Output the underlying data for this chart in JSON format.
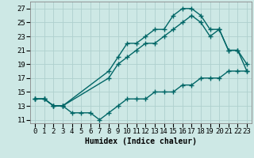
{
  "xlabel": "Humidex (Indice chaleur)",
  "bg_color": "#cde8e5",
  "grid_color": "#aed0ce",
  "line_color": "#006666",
  "xlim": [
    -0.5,
    23.5
  ],
  "ylim": [
    10.5,
    28.0
  ],
  "xticks": [
    0,
    1,
    2,
    3,
    4,
    5,
    6,
    7,
    8,
    9,
    10,
    11,
    12,
    13,
    14,
    15,
    16,
    17,
    18,
    19,
    20,
    21,
    22,
    23
  ],
  "yticks": [
    11,
    13,
    15,
    17,
    19,
    21,
    23,
    25,
    27
  ],
  "line1_x": [
    0,
    1,
    2,
    3,
    8,
    9,
    10,
    11,
    12,
    13,
    14,
    15,
    16,
    17,
    18,
    19,
    20,
    21,
    22,
    23
  ],
  "line1_y": [
    14,
    14,
    13,
    13,
    18,
    20,
    22,
    22,
    23,
    24,
    24,
    26,
    27,
    27,
    26,
    24,
    24,
    21,
    21,
    19
  ],
  "line2_x": [
    0,
    1,
    2,
    3,
    8,
    9,
    10,
    11,
    12,
    13,
    14,
    15,
    16,
    17,
    18,
    19,
    20,
    21,
    22,
    23
  ],
  "line2_y": [
    14,
    14,
    13,
    13,
    17,
    19,
    20,
    21,
    22,
    22,
    23,
    24,
    25,
    26,
    25,
    23,
    24,
    21,
    21,
    18
  ],
  "line3_x": [
    0,
    1,
    2,
    3,
    4,
    5,
    6,
    7,
    8,
    9,
    10,
    11,
    12,
    13,
    14,
    15,
    16,
    17,
    18,
    19,
    20,
    21,
    22,
    23
  ],
  "line3_y": [
    14,
    14,
    13,
    13,
    12,
    12,
    12,
    11,
    12,
    13,
    14,
    14,
    14,
    15,
    15,
    15,
    16,
    16,
    17,
    17,
    17,
    18,
    18,
    18
  ],
  "marker": "+",
  "marker_size": 4,
  "linewidth": 1.0,
  "tick_fontsize": 6.5,
  "xlabel_fontsize": 7.0
}
